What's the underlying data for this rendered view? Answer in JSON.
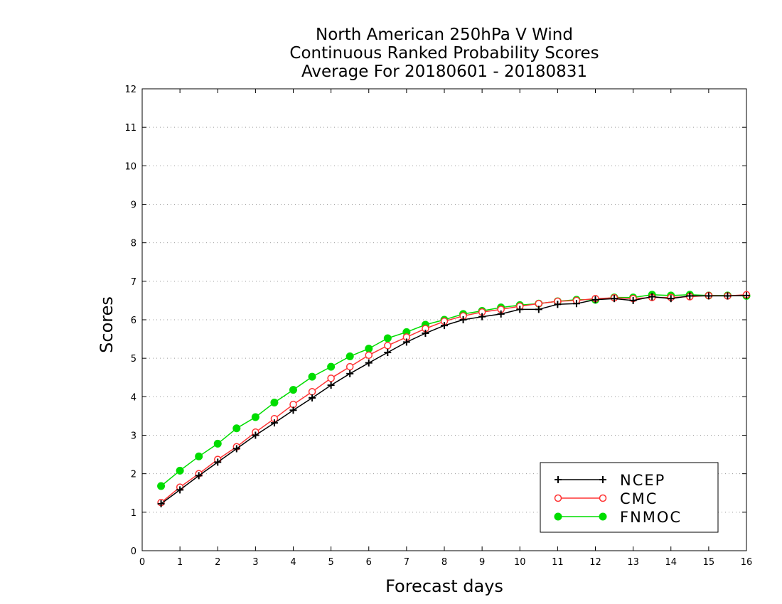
{
  "chart_data": {
    "type": "line",
    "title": [
      "North American 250hPa V Wind",
      "Continuous Ranked Probability Scores",
      "Average For 20180601 - 20180831"
    ],
    "xlabel": "Forecast days",
    "ylabel": "Scores",
    "xlim": [
      0,
      16
    ],
    "ylim": [
      0,
      12
    ],
    "xticks": [
      "0",
      "1",
      "2",
      "3",
      "4",
      "5",
      "6",
      "7",
      "8",
      "9",
      "10",
      "11",
      "12",
      "13",
      "14",
      "15",
      "16"
    ],
    "yticks": [
      "0",
      "1",
      "2",
      "3",
      "4",
      "5",
      "6",
      "7",
      "8",
      "9",
      "10",
      "11",
      "12"
    ],
    "grid": "horizontal dotted",
    "legend_position": "bottom-right",
    "x": [
      0.5,
      1,
      1.5,
      2,
      2.5,
      3,
      3.5,
      4,
      4.5,
      5,
      5.5,
      6,
      6.5,
      7,
      7.5,
      8,
      8.5,
      9,
      9.5,
      10,
      10.5,
      11,
      11.5,
      12,
      12.5,
      13,
      13.5,
      14,
      14.5,
      15,
      15.5,
      16
    ],
    "series": [
      {
        "name": "NCEP",
        "color": "#000000",
        "marker": "plus",
        "values": [
          1.22,
          1.58,
          1.95,
          2.3,
          2.65,
          3.0,
          3.32,
          3.65,
          3.97,
          4.3,
          4.6,
          4.88,
          5.15,
          5.42,
          5.65,
          5.85,
          6.0,
          6.08,
          6.15,
          6.27,
          6.27,
          6.4,
          6.42,
          6.52,
          6.55,
          6.5,
          6.6,
          6.55,
          6.62,
          6.62,
          6.62,
          6.63
        ]
      },
      {
        "name": "CMC",
        "color": "#ff3333",
        "marker": "open-circle",
        "values": [
          1.25,
          1.65,
          2.0,
          2.37,
          2.7,
          3.08,
          3.43,
          3.8,
          4.13,
          4.48,
          4.78,
          5.08,
          5.33,
          5.55,
          5.77,
          5.96,
          6.1,
          6.2,
          6.27,
          6.35,
          6.42,
          6.48,
          6.5,
          6.55,
          6.57,
          6.55,
          6.58,
          6.58,
          6.6,
          6.63,
          6.62,
          6.65
        ]
      },
      {
        "name": "FNMOC",
        "color": "#00dd00",
        "marker": "filled-circle",
        "values": [
          1.68,
          2.08,
          2.45,
          2.78,
          3.18,
          3.47,
          3.85,
          4.18,
          4.52,
          4.78,
          5.05,
          5.25,
          5.52,
          5.68,
          5.87,
          6.0,
          6.15,
          6.23,
          6.32,
          6.38,
          6.42,
          6.48,
          6.52,
          6.52,
          6.58,
          6.58,
          6.65,
          6.63,
          6.65,
          6.63,
          6.63,
          6.62
        ]
      }
    ]
  }
}
